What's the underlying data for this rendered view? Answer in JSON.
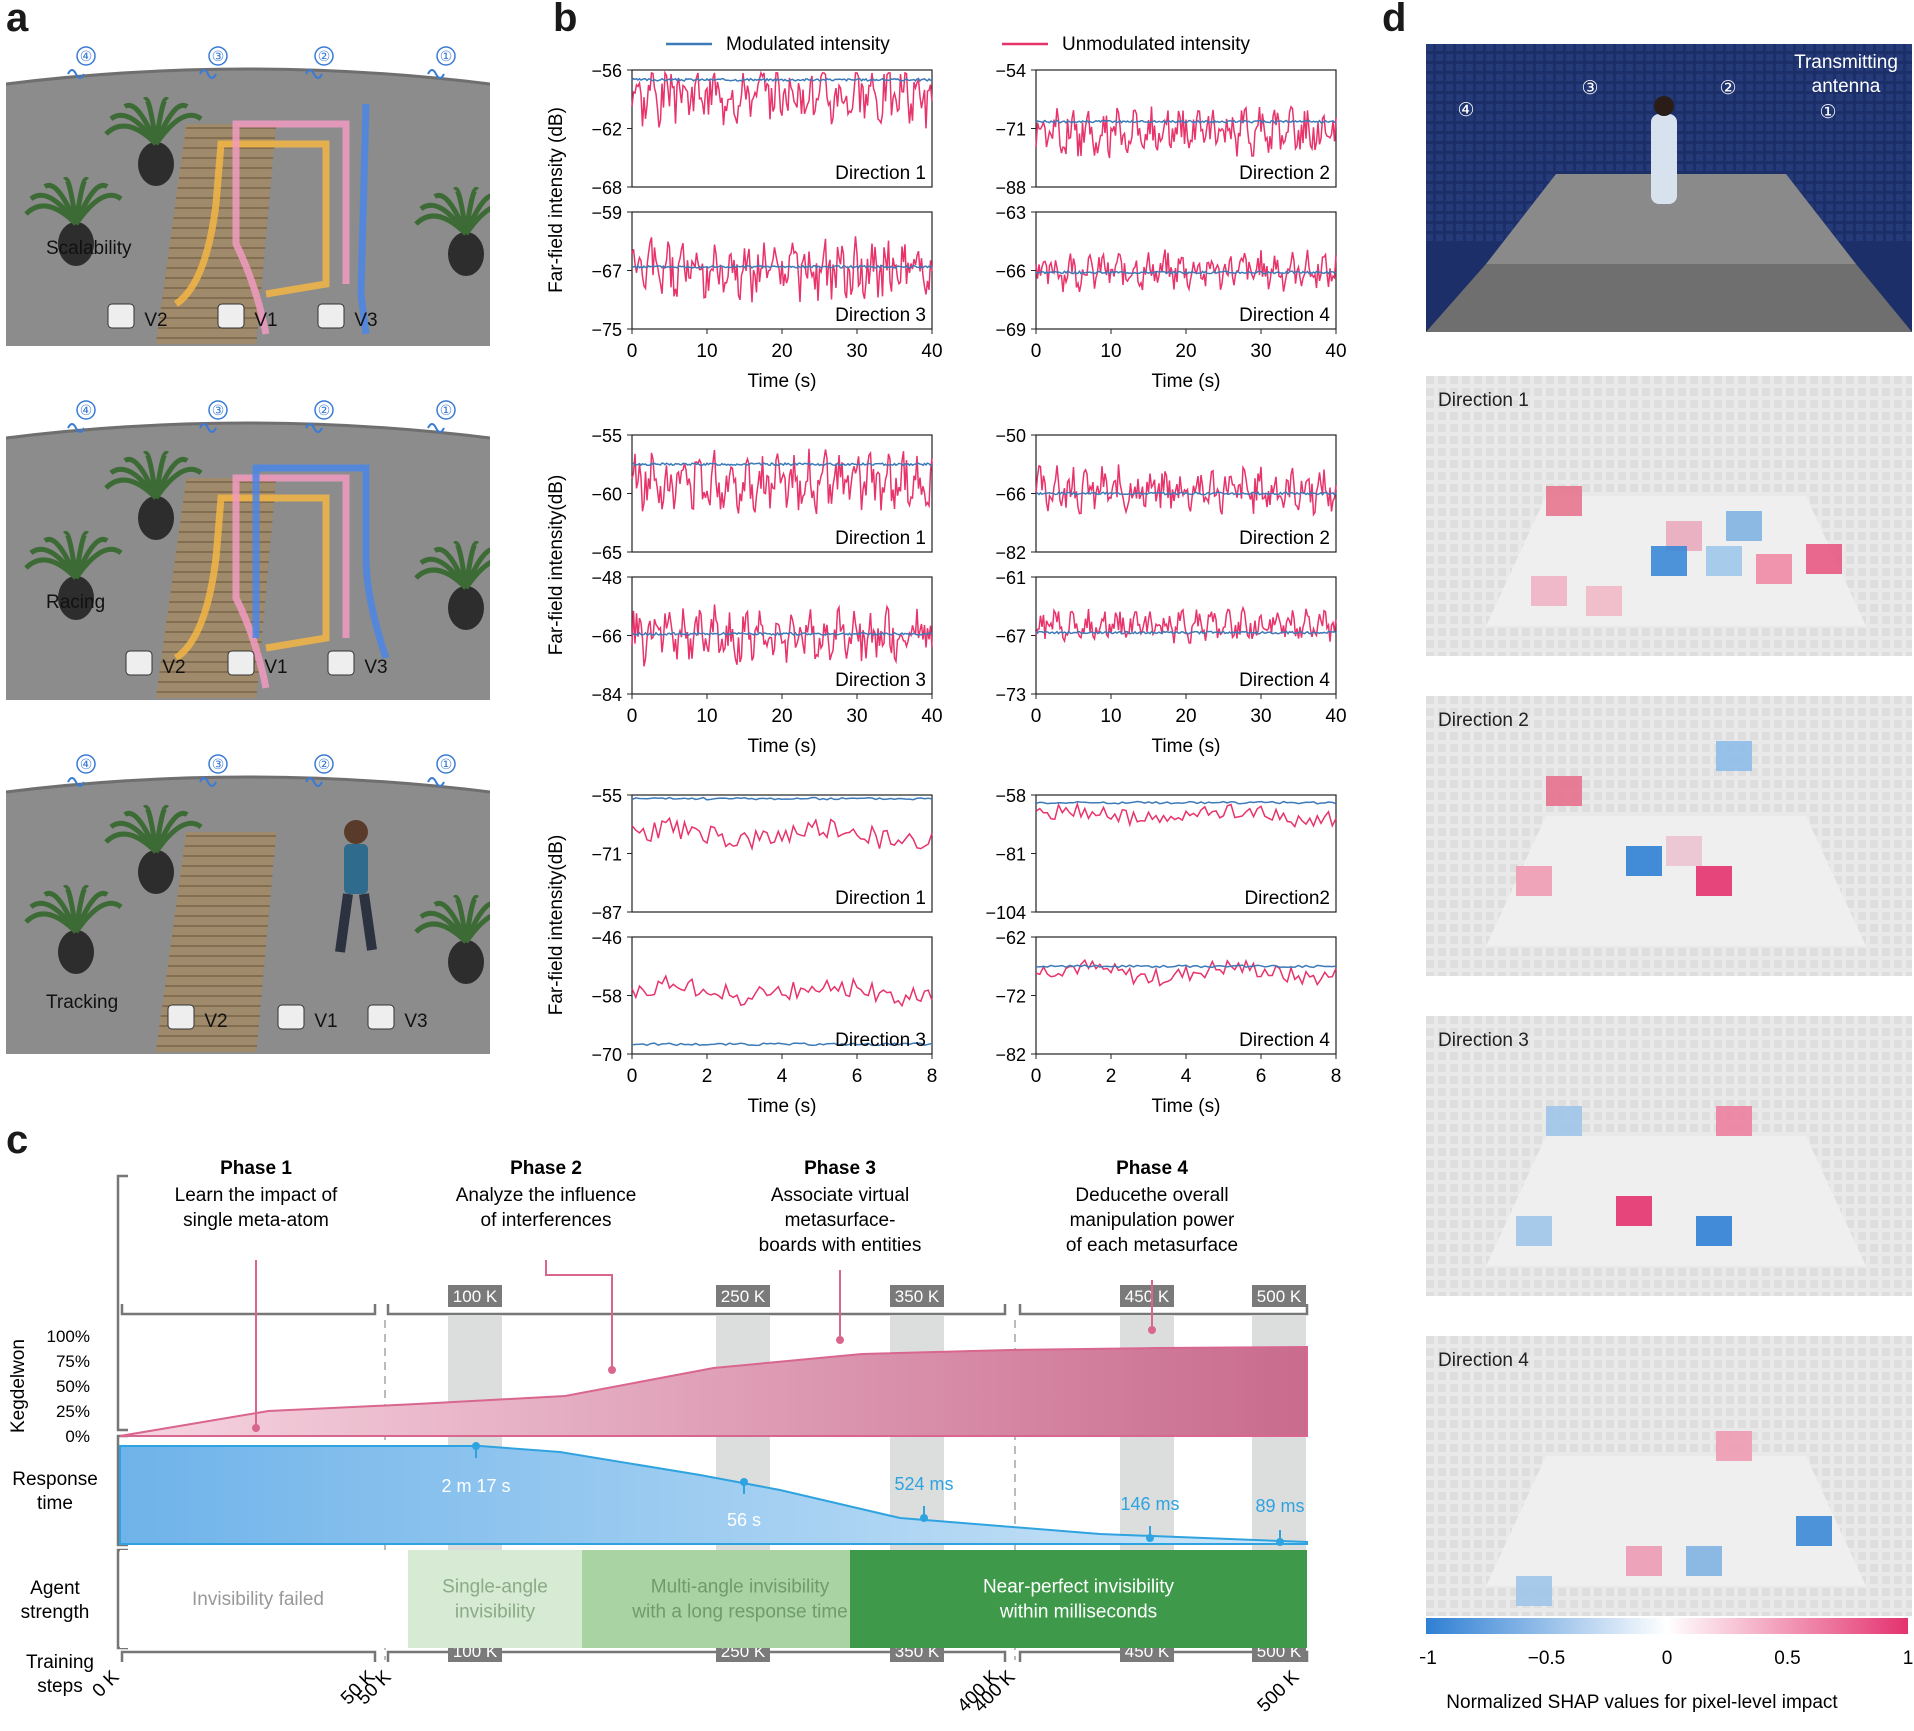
{
  "panels": {
    "a": "a",
    "b": "b",
    "c": "c",
    "d": "d"
  },
  "panel_a": {
    "scenes": [
      {
        "label": "Scalability",
        "vehicles": [
          "V2",
          "V1",
          "V3"
        ]
      },
      {
        "label": "Racing",
        "vehicles": [
          "V2",
          "V1",
          "V3"
        ]
      },
      {
        "label": "Tracking",
        "vehicles": [
          "V2",
          "V1",
          "V3"
        ]
      }
    ],
    "marker_numbers": [
      "④",
      "③",
      "②",
      "①"
    ]
  },
  "panel_b": {
    "legend": {
      "modulated": "Modulated intensity",
      "unmodulated": "Unmodulated intensity"
    },
    "colors": {
      "modulated": "#3d7ab8",
      "unmodulated": "#e8336b"
    },
    "ylabels": [
      "Far-field intensity (dB)",
      "Far-field intensity(dB)",
      "Far-field intensity(dB)"
    ],
    "xlabel": "Time (s)",
    "rows": [
      {
        "xticks": [
          "0",
          "10",
          "20",
          "30",
          "40"
        ],
        "xmax": 40,
        "plots": [
          {
            "label": "Direction 1",
            "yticks": [
              "−56",
              "−62",
              "−68"
            ],
            "ymin": -68,
            "ymax": -56,
            "mod": -57,
            "unmod": -58.5,
            "var": 2.2
          },
          {
            "label": "Direction 2",
            "yticks": [
              "−54",
              "−71",
              "−88"
            ],
            "ymin": -88,
            "ymax": -54,
            "mod": -69,
            "unmod": -72,
            "var": 5
          },
          {
            "label": "Direction 3",
            "yticks": [
              "−59",
              "−67",
              "−75"
            ],
            "ymin": -75,
            "ymax": -59,
            "mod": -66.5,
            "unmod": -67,
            "var": 3
          },
          {
            "label": "Direction 4",
            "yticks": [
              "−63",
              "−66",
              "−69"
            ],
            "ymin": -69,
            "ymax": -63,
            "mod": -66.1,
            "unmod": -66,
            "var": 0.7
          }
        ]
      },
      {
        "xticks": [
          "0",
          "10",
          "20",
          "30",
          "40"
        ],
        "xmax": 40,
        "plots": [
          {
            "label": "Direction 1",
            "yticks": [
              "−55",
              "−60",
              "−65"
            ],
            "ymin": -65,
            "ymax": -55,
            "mod": -57.5,
            "unmod": -59,
            "var": 1.8
          },
          {
            "label": "Direction 2",
            "yticks": [
              "−50",
              "−66",
              "−82"
            ],
            "ymin": -82,
            "ymax": -50,
            "mod": -66,
            "unmod": -65,
            "var": 4.5
          },
          {
            "label": "Direction 3",
            "yticks": [
              "−48",
              "−66",
              "−84"
            ],
            "ymin": -84,
            "ymax": -48,
            "mod": -65.5,
            "unmod": -66,
            "var": 6
          },
          {
            "label": "Direction 4",
            "yticks": [
              "−61",
              "−67",
              "−73"
            ],
            "ymin": -73,
            "ymax": -61,
            "mod": -66.7,
            "unmod": -66,
            "var": 1.2
          }
        ]
      },
      {
        "xticks": [
          "0",
          "2",
          "4",
          "6",
          "8"
        ],
        "xmax": 8,
        "plots": [
          {
            "label": "Direction 1",
            "yticks": [
              "−55",
              "−71",
              "−87"
            ],
            "ymin": -87,
            "ymax": -55,
            "mod": -56,
            "unmod": -66,
            "var": 3
          },
          {
            "label": "Direction2",
            "yticks": [
              "−58",
              "−81",
              "−104"
            ],
            "ymin": -104,
            "ymax": -58,
            "mod": -61,
            "unmod": -66,
            "var": 3
          },
          {
            "label": "Direction 3",
            "yticks": [
              "−46",
              "−58",
              "−70"
            ],
            "ymin": -70,
            "ymax": -46,
            "mod": -68,
            "unmod": -57,
            "var": 2
          },
          {
            "label": "Direction 4",
            "yticks": [
              "−62",
              "−72",
              "−82"
            ],
            "ymin": -82,
            "ymax": -62,
            "mod": -67,
            "unmod": -68,
            "var": 1.5
          }
        ]
      }
    ]
  },
  "panel_c": {
    "phases": [
      {
        "title": "Phase 1",
        "desc": [
          "Learn the impact of",
          "single meta-atom"
        ]
      },
      {
        "title": "Phase 2",
        "desc": [
          "Analyze the influence",
          "of interferences"
        ]
      },
      {
        "title": "Phase 3",
        "desc": [
          "Associate virtual",
          "metasurface-",
          "boards with entities"
        ]
      },
      {
        "title": "Phase 4",
        "desc": [
          "Deducethe overall",
          "manipulation power",
          "of each metasurface"
        ]
      }
    ],
    "top_badges": [
      "100 K",
      "250 K",
      "350 K",
      "450 K",
      "500 K"
    ],
    "knowledge_label": "Kegdelwon",
    "knowledge_ticks": [
      "100%",
      "75%",
      "50%",
      "25%",
      "0%"
    ],
    "knowledge_values": [
      0,
      25,
      32,
      40,
      68,
      82,
      86,
      88,
      89
    ],
    "response_label": [
      "Response",
      "time"
    ],
    "response_annotations": [
      "2 m 17 s",
      "56 s",
      "524 ms",
      "146 ms",
      "89 ms"
    ],
    "agent_label": [
      "Agent",
      "strength"
    ],
    "agent_stages": [
      {
        "text": [
          "Invisibility failed"
        ]
      },
      {
        "text": [
          "Single-angle",
          "invisibility"
        ]
      },
      {
        "text": [
          "Multi-angle invisibility",
          "with a long response time"
        ]
      },
      {
        "text": [
          "Near-perfect invisibility",
          "within milliseconds"
        ]
      }
    ],
    "training_label": [
      "Training",
      "steps"
    ],
    "bottom_badges": [
      "100 K",
      "250 K",
      "350 K",
      "450 K",
      "500 K"
    ],
    "axis_labels": [
      "0 K",
      "50 K",
      "50 K",
      "400 K",
      "400 K",
      "500 K"
    ],
    "colors": {
      "knowledge": "#d9668f",
      "response": "#2fa3e0",
      "agent_dark": "#3e9a4a"
    }
  },
  "panel_d": {
    "photo_labels": {
      "antenna": [
        "Transmitting",
        "antenna"
      ],
      "markers": [
        "④",
        "③",
        "②",
        "①"
      ]
    },
    "shap_panels": [
      "Direction 1",
      "Direction 2",
      "Direction 3",
      "Direction 4"
    ],
    "colorbar": {
      "ticks": [
        "−1",
        "−0.5",
        "0",
        "0.5",
        "1"
      ],
      "label": "Normalized SHAP values for pixel-level impact"
    }
  }
}
